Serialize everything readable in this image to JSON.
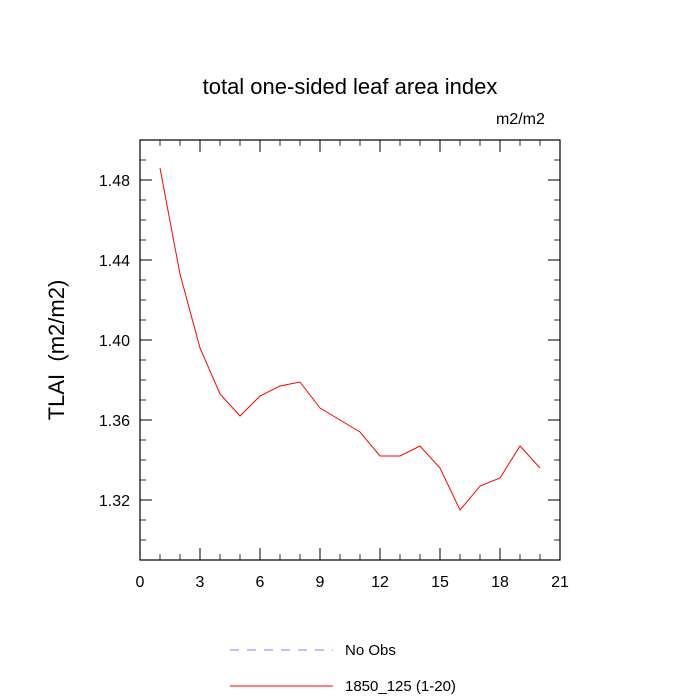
{
  "chart_data": {
    "type": "line",
    "title": "total one-sided leaf area index",
    "units": "m2/m2",
    "ylabel": "TLAI  (m2/m2)",
    "xlabel": "",
    "xlim": [
      0,
      21
    ],
    "ylim": [
      1.29,
      1.5
    ],
    "xticks": [
      0,
      3,
      6,
      9,
      12,
      15,
      18,
      21
    ],
    "yticks": [
      1.32,
      1.36,
      1.4,
      1.44,
      1.48
    ],
    "ytick_labels": [
      "1.32",
      "1.36",
      "1.40",
      "1.44",
      "1.48"
    ],
    "grid": false,
    "series": [
      {
        "name": "1850_125 (1-20)",
        "color": "#ff0000",
        "dash": "solid",
        "x": [
          1,
          2,
          3,
          4,
          5,
          6,
          7,
          8,
          9,
          10,
          11,
          12,
          13,
          14,
          15,
          16,
          17,
          18,
          19,
          20
        ],
        "values": [
          1.486,
          1.433,
          1.396,
          1.373,
          1.362,
          1.372,
          1.377,
          1.379,
          1.366,
          1.36,
          1.354,
          1.342,
          1.342,
          1.347,
          1.336,
          1.315,
          1.327,
          1.331,
          1.347,
          1.336
        ]
      }
    ],
    "legend": [
      {
        "label": "No Obs",
        "color": "#8080ff",
        "dash": "dashed"
      },
      {
        "label": "1850_125 (1-20)",
        "color": "#ff0000",
        "dash": "solid"
      }
    ],
    "legend_position": "bottom"
  }
}
